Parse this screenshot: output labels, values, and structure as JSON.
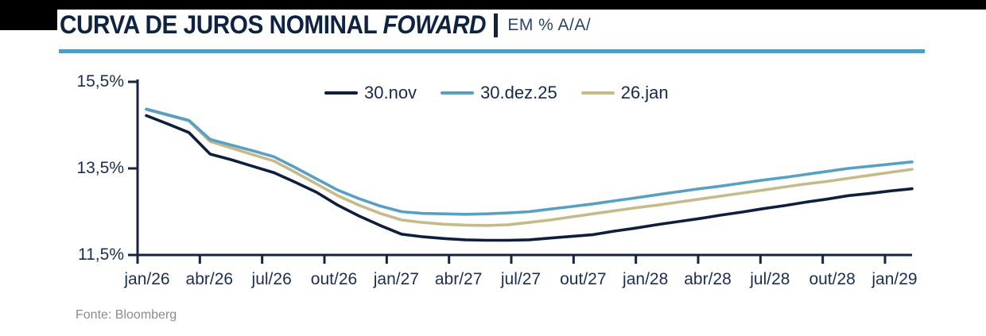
{
  "header": {
    "title_main": "CURVA DE JUROS NOMINAL ",
    "title_italic": "FOWARD",
    "title_suffix": "EM % A/A/"
  },
  "footer": {
    "source": "Fonte: Bloomberg"
  },
  "colors": {
    "title_navy": "#0e2342",
    "divider_blue": "#4f9cbe",
    "axis_navy": "#16243f",
    "tick_label_navy": "#1b2d55",
    "footer_gray": "#8c8c8c"
  },
  "chart_data": {
    "type": "line",
    "title": "CURVA DE JUROS NOMINAL FOWARD",
    "ylabel": "EM % A/A/",
    "ylim": [
      11.5,
      15.5
    ],
    "grid": false,
    "legend_position": "top",
    "x_start": "jan/26",
    "x_interval": "monthly",
    "x_tick_labels": [
      "jan/26",
      "abr/26",
      "jul/26",
      "out/26",
      "jan/27",
      "abr/27",
      "jul/27",
      "out/27",
      "jan/28",
      "abr/28",
      "jul/28",
      "out/28",
      "jan/29"
    ],
    "y_ticks": [
      {
        "label": "15,5%",
        "value": 15.5
      },
      {
        "label": "13,5%",
        "value": 13.5
      },
      {
        "label": "11,5%",
        "value": 11.5
      }
    ],
    "series": [
      {
        "name": "30.nov",
        "color": "#0e1f3d",
        "values": [
          14.72,
          14.53,
          14.33,
          13.83,
          13.7,
          13.55,
          13.4,
          13.18,
          12.95,
          12.65,
          12.4,
          12.18,
          11.98,
          11.92,
          11.88,
          11.85,
          11.84,
          11.84,
          11.85,
          11.89,
          11.93,
          11.97,
          12.05,
          12.12,
          12.2,
          12.27,
          12.34,
          12.42,
          12.49,
          12.57,
          12.64,
          12.72,
          12.79,
          12.87,
          12.92,
          12.98,
          13.03
        ]
      },
      {
        "name": "30.dez.25",
        "color": "#57a0c4",
        "values": [
          14.87,
          14.74,
          14.61,
          14.17,
          14.04,
          13.91,
          13.77,
          13.52,
          13.26,
          13.0,
          12.8,
          12.63,
          12.5,
          12.46,
          12.45,
          12.44,
          12.45,
          12.47,
          12.5,
          12.56,
          12.62,
          12.68,
          12.75,
          12.82,
          12.89,
          12.96,
          13.03,
          13.09,
          13.16,
          13.23,
          13.29,
          13.36,
          13.43,
          13.5,
          13.55,
          13.6,
          13.65
        ]
      },
      {
        "name": "26.jan",
        "color": "#c6ba8b",
        "values": [
          14.86,
          14.73,
          14.6,
          14.12,
          13.97,
          13.82,
          13.67,
          13.41,
          13.14,
          12.87,
          12.65,
          12.46,
          12.31,
          12.25,
          12.21,
          12.19,
          12.18,
          12.2,
          12.25,
          12.31,
          12.38,
          12.45,
          12.52,
          12.59,
          12.65,
          12.72,
          12.79,
          12.86,
          12.93,
          13.0,
          13.07,
          13.14,
          13.2,
          13.27,
          13.34,
          13.41,
          13.48
        ]
      }
    ]
  }
}
